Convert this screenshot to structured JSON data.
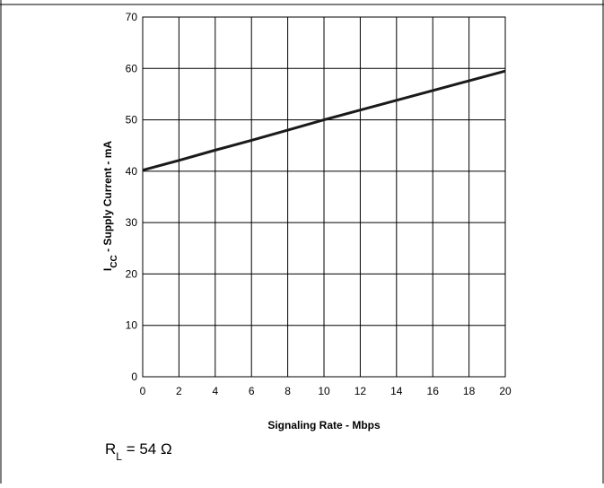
{
  "chart_data": {
    "type": "line",
    "xlabel": "Signaling Rate - Mbps",
    "ylabel": {
      "symbol": "I",
      "subscript": "CC",
      "rest": " - Supply Current - mA"
    },
    "xlim": [
      0,
      20
    ],
    "ylim": [
      0,
      70
    ],
    "x_ticks": [
      0,
      2,
      4,
      6,
      8,
      10,
      12,
      14,
      16,
      18,
      20
    ],
    "y_ticks": [
      0,
      10,
      20,
      30,
      40,
      50,
      60,
      70
    ],
    "grid": true,
    "series": [
      {
        "color": "#1a1a1a",
        "x": [
          0,
          2,
          4,
          6,
          8,
          10,
          12,
          14,
          16,
          18,
          20
        ],
        "y": [
          40.2,
          42.1,
          44.1,
          46.0,
          48.0,
          50.0,
          51.9,
          53.8,
          55.7,
          57.6,
          59.5
        ]
      }
    ],
    "annotation": {
      "symbol": "R",
      "subscript": "L",
      "rest": " = 54 Ω"
    }
  }
}
